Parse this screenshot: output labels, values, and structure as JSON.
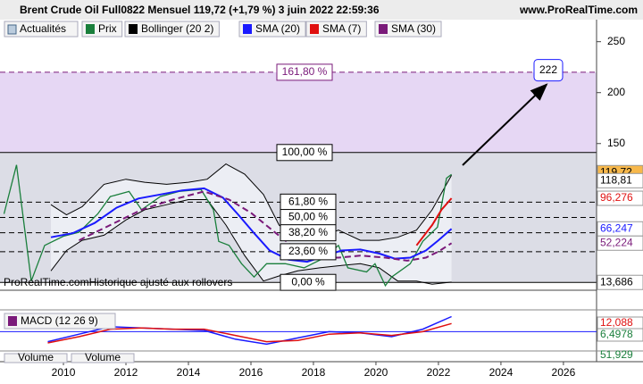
{
  "header": {
    "title": "Brent Crude Oil Full0822 Mensuel 119,72 (+1,79 %) 3 juin 2022 22:59:36",
    "site": "www.ProRealTime.com",
    "button": "Actualités"
  },
  "footnote": "ProRealTime.comHistorique ajusté aux rollovers",
  "chart_data": [
    {
      "type": "line",
      "xlim": [
        2007.97,
        2027.06
      ],
      "xticks": [
        2010,
        2012,
        2014,
        2016,
        2018,
        2020,
        2022,
        2024,
        2026
      ],
      "ylim": [
        6,
        262
      ],
      "yticks": [
        150,
        200,
        250
      ],
      "series": [
        {
          "name": "Prix",
          "color": "#1a7f3c",
          "x": [
            2008.1,
            2008.5,
            2008.97,
            2009.4,
            2010.0,
            2010.5,
            2011.1,
            2011.5,
            2012.1,
            2012.5,
            2013.1,
            2013.7,
            2014.4,
            2014.8,
            2014.97,
            2015.3,
            2015.7,
            2016.1,
            2016.5,
            2017.1,
            2017.7,
            2018.3,
            2018.8,
            2019.1,
            2019.7,
            2019.97,
            2020.3,
            2020.5,
            2021.1,
            2021.5,
            2021.97,
            2022.26,
            2022.42
          ],
          "values": [
            81,
            129,
            15,
            50,
            59,
            63,
            81,
            98,
            103,
            85,
            98,
            103,
            105,
            85,
            54,
            50,
            32,
            19,
            32,
            32,
            28,
            37,
            50,
            28,
            24,
            32,
            10.5,
            19,
            32,
            54,
            68,
            116,
            119.72
          ]
        },
        {
          "name": "Bollinger (20 2)",
          "color": "#000000",
          "x": [
            2009.6,
            2010.1,
            2010.6,
            2011.3,
            2012.0,
            2012.6,
            2013.3,
            2014.0,
            2014.6,
            2015.2,
            2015.8,
            2016.4,
            2016.9,
            2017.5,
            2018.2,
            2018.8,
            2019.5,
            2020.1,
            2020.7,
            2021.3,
            2021.8,
            2022.42
          ],
          "upper": [
            90,
            80,
            88,
            110,
            115,
            112,
            110,
            112,
            115,
            130,
            120,
            100,
            70,
            55,
            58,
            65,
            55,
            55,
            58,
            65,
            85,
            118.81
          ],
          "lower": [
            25,
            45,
            55,
            60,
            75,
            85,
            90,
            95,
            95,
            70,
            40,
            15,
            20,
            25,
            28,
            30,
            32,
            28,
            15,
            15,
            12,
            14
          ]
        },
        {
          "name": "SMA (20)",
          "color": "#1a1aff",
          "x": [
            2009.6,
            2010.3,
            2011.0,
            2011.7,
            2012.4,
            2013.1,
            2013.8,
            2014.5,
            2015.1,
            2015.6,
            2016.1,
            2016.6,
            2017.2,
            2017.8,
            2018.4,
            2018.9,
            2019.5,
            2020.1,
            2020.6,
            2021.1,
            2021.6,
            2022.0,
            2022.42
          ],
          "values": [
            58,
            62,
            72,
            87,
            96,
            100,
            104,
            106,
            97,
            80,
            62,
            45,
            36,
            34,
            40,
            45,
            46,
            42,
            37,
            38,
            45,
            55,
            66.247
          ]
        },
        {
          "name": "SMA (7)",
          "color": "#e01010",
          "x": [
            2021.3,
            2021.8,
            2022.1,
            2022.42
          ],
          "values": [
            50,
            70,
            85,
            96.276
          ]
        },
        {
          "name": "SMA (30)",
          "color": "#7a1a7a",
          "dashed": true,
          "x": [
            2010.5,
            2011.5,
            2012.5,
            2013.5,
            2014.5,
            2015.3,
            2016.0,
            2016.8,
            2017.5,
            2018.2,
            2018.8,
            2019.5,
            2020.3,
            2021.0,
            2021.6,
            2022.0,
            2022.42
          ],
          "values": [
            55,
            70,
            85,
            95,
            103,
            95,
            82,
            62,
            45,
            38,
            38,
            40,
            38,
            35,
            38,
            44,
            52.224
          ]
        }
      ],
      "fib_levels": [
        {
          "value": 220,
          "label": "161,80 %"
        },
        {
          "value": 141.2,
          "label": "100,00 %"
        },
        {
          "value": 92.5,
          "label": "61,80 %"
        },
        {
          "value": 77.4,
          "label": "50,00 %"
        },
        {
          "value": 62.4,
          "label": "38,20 %"
        },
        {
          "value": 43.8,
          "label": "23,60 %"
        },
        {
          "value": 13.686,
          "label": "0,00 %"
        }
      ],
      "target": {
        "value": 222,
        "label": "222"
      },
      "price_labels": [
        {
          "value": 119.72,
          "label": "119,72",
          "color": "#000000",
          "fill": "#f7b84b"
        },
        {
          "value": 118.81,
          "label": "118,81",
          "color": "#000000",
          "fill": "#ffffff"
        },
        {
          "value": 96.276,
          "label": "96,276",
          "color": "#e01010",
          "fill": "#ffffff"
        },
        {
          "value": 66.247,
          "label": "66,247",
          "color": "#1a1aff",
          "fill": "#ffffff"
        },
        {
          "value": 52.224,
          "label": "52,224",
          "color": "#7a1a7a",
          "fill": "#ffffff"
        },
        {
          "value": 13.686,
          "label": "13,686",
          "color": "#000000",
          "fill": "#ffffff"
        }
      ]
    },
    {
      "type": "line",
      "title": "MACD (12 26 9)",
      "ylim": [
        -14,
        16
      ],
      "series": [
        {
          "color": "#1a1aff",
          "x": [
            2009.5,
            2010.5,
            2011.5,
            2012.5,
            2013.5,
            2014.5,
            2015.5,
            2016.5,
            2017.5,
            2018.5,
            2019.5,
            2020.5,
            2021.5,
            2022.42
          ],
          "values": [
            -8,
            -2,
            4,
            3,
            2,
            1,
            -6,
            -10,
            -5,
            0,
            -1,
            -4,
            2,
            12.088
          ]
        },
        {
          "color": "#e01010",
          "x": [
            2009.5,
            2010.5,
            2011.5,
            2012.5,
            2013.5,
            2014.5,
            2015.5,
            2016.5,
            2017.5,
            2018.5,
            2019.5,
            2020.5,
            2021.5,
            2022.42
          ],
          "values": [
            -9,
            -4,
            2,
            3,
            2,
            2,
            -3,
            -8,
            -7,
            -2,
            -1,
            -3,
            0,
            6.4978
          ]
        }
      ],
      "price_labels": [
        {
          "value": 12.088,
          "label": "12,088"
        },
        {
          "value": 6.4978,
          "label": "6,4978"
        }
      ]
    },
    {
      "type": "bar",
      "title": "Volume",
      "legend": "Volume",
      "price_labels": [
        {
          "value": 51.929,
          "label": "51,929"
        }
      ]
    }
  ]
}
